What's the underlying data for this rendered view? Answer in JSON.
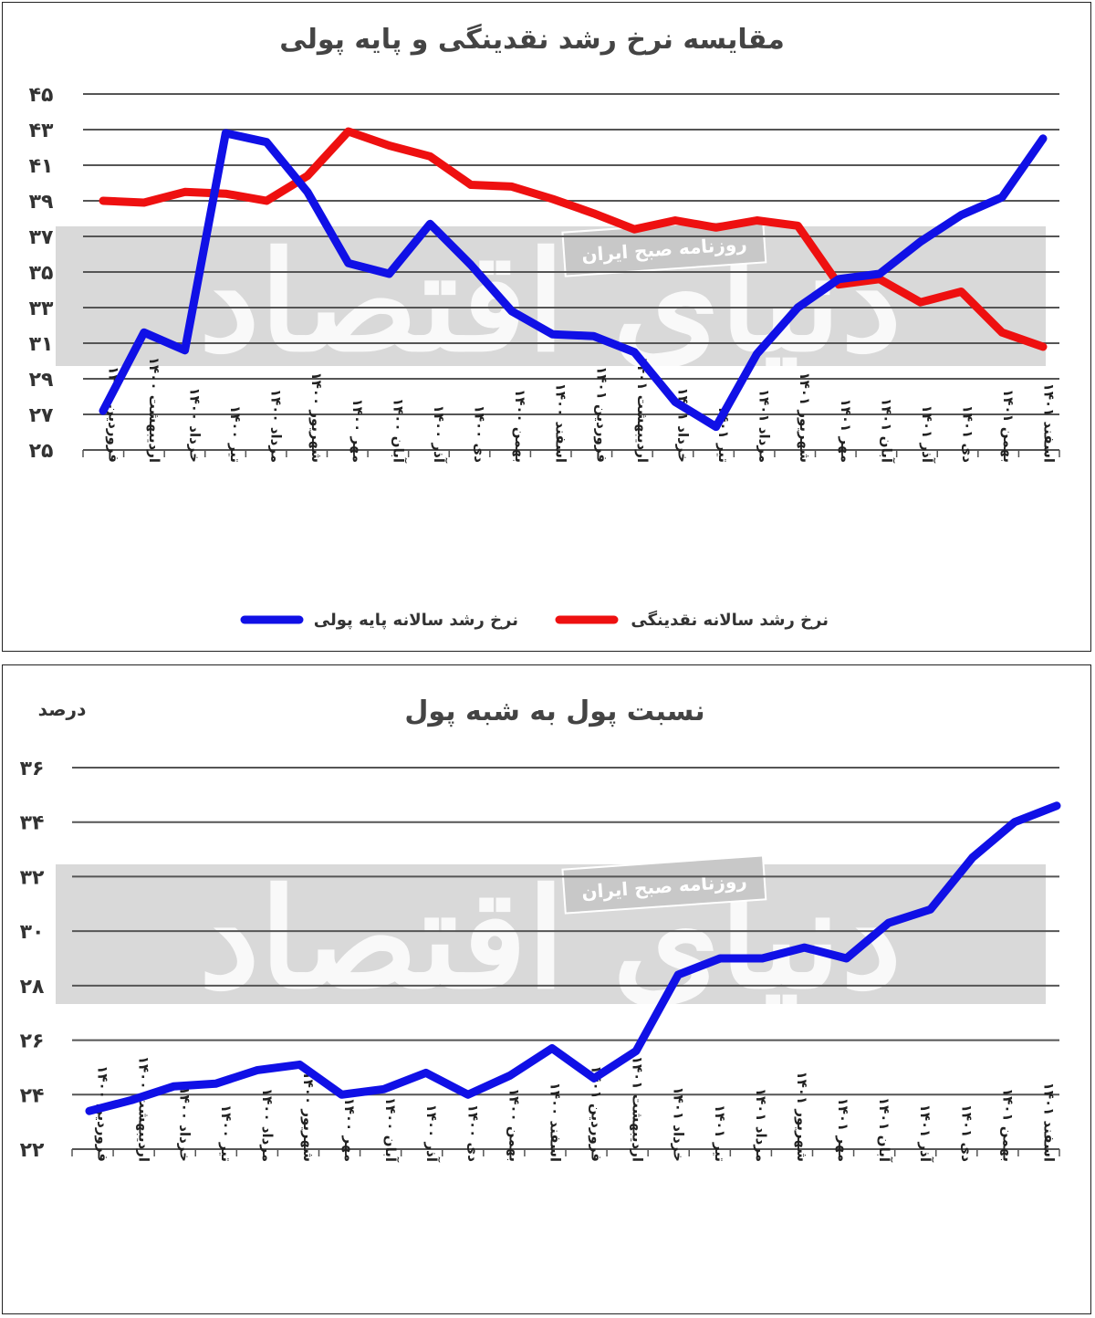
{
  "watermark": {
    "text": "روزنامه صبح ایران",
    "logo": "دنیای اقتصاد"
  },
  "chart_data": [
    {
      "type": "line",
      "title": "مقایسه نرخ رشد نقدینگی و پایه پولی",
      "ylim": [
        25,
        45
      ],
      "yticks": [
        "۲۵",
        "۲۷",
        "۲۹",
        "۳۱",
        "۳۳",
        "۳۵",
        "۳۷",
        "۳۹",
        "۴۱",
        "۴۳",
        "۴۵"
      ],
      "ytick_values": [
        25,
        27,
        29,
        31,
        33,
        35,
        37,
        39,
        41,
        43,
        45
      ],
      "grid": true,
      "legend": "bottom",
      "categories": [
        "فروردین ۱۴۰۰",
        "اردیبهشت ۱۴۰۰",
        "خرداد ۱۴۰۰",
        "تیر ۱۴۰۰",
        "مرداد ۱۴۰۰",
        "شهریور ۱۴۰۰",
        "مهر ۱۴۰۰",
        "آبان ۱۴۰۰",
        "آذر ۱۴۰۰",
        "دی ۱۴۰۰",
        "بهمن ۱۴۰۰",
        "اسفند ۱۴۰۰",
        "فروردین ۱۴۰۱",
        "اردیبهشت ۱۴۰۱",
        "خرداد ۱۴۰۱",
        "تیر ۱۴۰۱",
        "مرداد ۱۴۰۱",
        "شهریور ۱۴۰۱",
        "مهر ۱۴۰۱",
        "آبان ۱۴۰۱",
        "آذر ۱۴۰۱",
        "دی ۱۴۰۱",
        "بهمن ۱۴۰۱",
        "اسفند ۱۴۰۱"
      ],
      "series": [
        {
          "name": "نرخ رشد سالانه پایه پولی",
          "color": "#1010e6",
          "values": [
            27.2,
            31.6,
            30.6,
            42.8,
            42.3,
            39.5,
            35.5,
            34.9,
            37.7,
            35.4,
            32.8,
            31.5,
            31.4,
            30.5,
            27.7,
            26.3,
            30.4,
            33.0,
            34.6,
            34.9,
            36.7,
            38.2,
            39.2,
            42.5
          ]
        },
        {
          "name": "نرخ رشد سالانه نقدینگی",
          "color": "#ee1010",
          "values": [
            39.0,
            38.9,
            39.5,
            39.4,
            39.0,
            40.4,
            42.9,
            42.1,
            41.5,
            39.9,
            39.8,
            39.1,
            38.3,
            37.4,
            37.9,
            37.5,
            37.9,
            37.6,
            34.3,
            34.6,
            33.3,
            33.9,
            31.6,
            30.8
          ]
        }
      ]
    },
    {
      "type": "line",
      "title": "نسبت پول به شبه پول",
      "unit_label": "درصد",
      "ylim": [
        22,
        36
      ],
      "yticks": [
        "۲۲",
        "۲۴",
        "۲۶",
        "۲۸",
        "۳۰",
        "۳۲",
        "۳۴",
        "۳۶"
      ],
      "ytick_values": [
        22,
        24,
        26,
        28,
        30,
        32,
        34,
        36
      ],
      "grid": true,
      "categories": [
        "فروردین ۱۴۰۰",
        "اردیبهشت ۱۴۰۰",
        "خرداد ۱۴۰۰",
        "تیر ۱۴۰۰",
        "مرداد ۱۴۰۰",
        "شهریور ۱۴۰۰",
        "مهر ۱۴۰۰",
        "آبان ۱۴۰۰",
        "آذر ۱۴۰۰",
        "دی ۱۴۰۰",
        "بهمن ۱۴۰۰",
        "اسفند ۱۴۰۰",
        "فروردین ۱۴۰۱",
        "اردیبهشت ۱۴۰۱",
        "خرداد ۱۴۰۱",
        "تیر ۱۴۰۱",
        "مرداد ۱۴۰۱",
        "شهریور ۱۴۰۱",
        "مهر ۱۴۰۱",
        "آبان ۱۴۰۱",
        "آذر ۱۴۰۱",
        "دی ۱۴۰۱",
        "بهمن ۱۴۰۱",
        "اسفند ۱۴۰۱"
      ],
      "series": [
        {
          "color": "#1010e6",
          "values": [
            23.4,
            23.8,
            24.3,
            24.4,
            24.9,
            25.1,
            24.0,
            24.2,
            24.8,
            24.0,
            24.7,
            25.7,
            24.6,
            25.6,
            28.4,
            29.0,
            29.0,
            29.4,
            29.0,
            30.3,
            30.8,
            32.7,
            34.0,
            34.6
          ]
        }
      ]
    }
  ]
}
